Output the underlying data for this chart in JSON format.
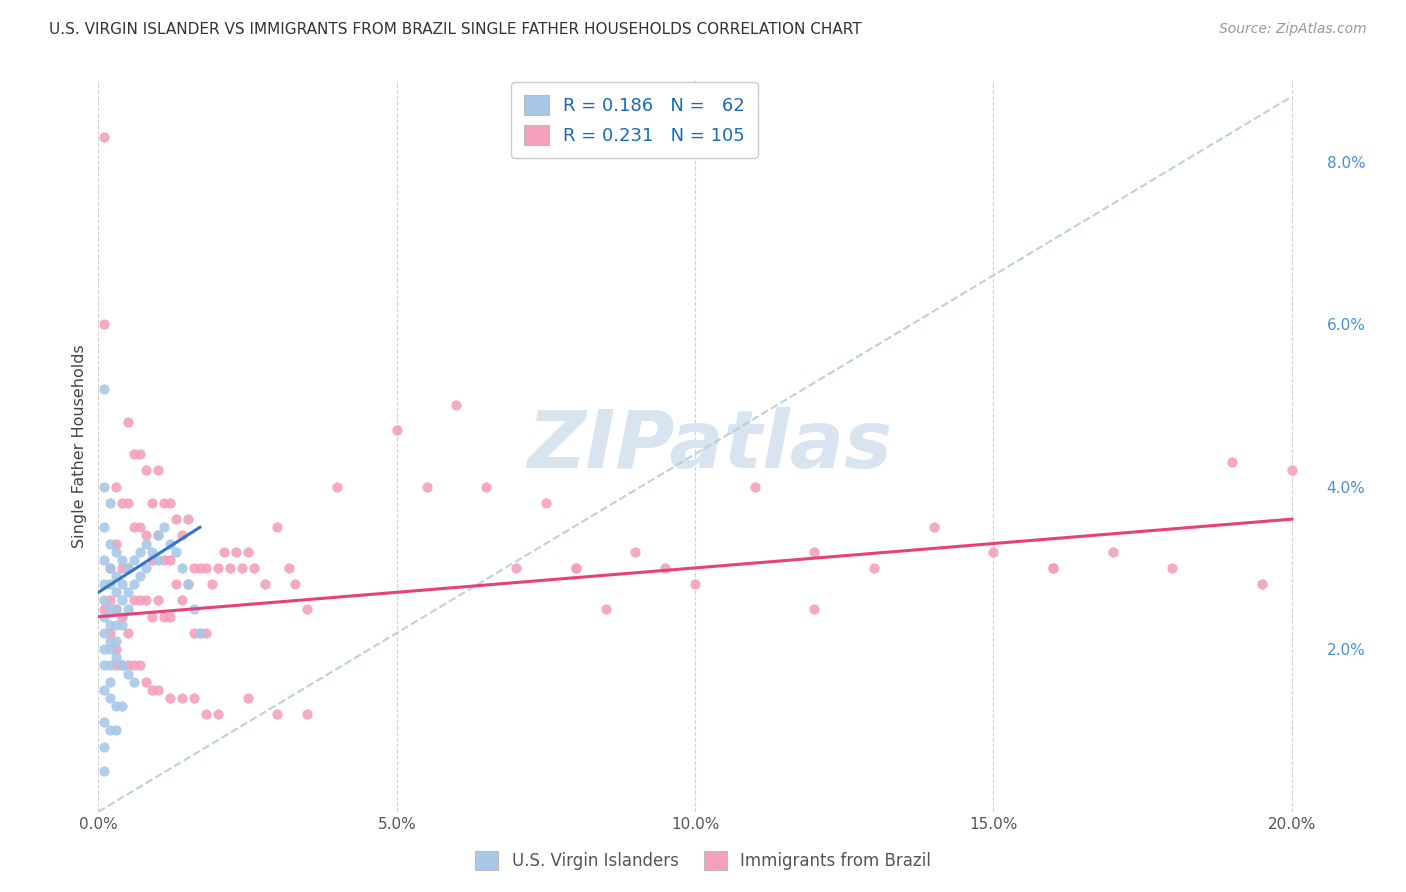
{
  "title": "U.S. VIRGIN ISLANDER VS IMMIGRANTS FROM BRAZIL SINGLE FATHER HOUSEHOLDS CORRELATION CHART",
  "source": "Source: ZipAtlas.com",
  "ylabel": "Single Father Households",
  "blue_color": "#a8c8e8",
  "pink_color": "#f4a0bc",
  "blue_line_color": "#3575c8",
  "pink_line_color": "#e8407a",
  "dashed_line_color": "#b0c8e0",
  "watermark_text": "ZIPatlas",
  "watermark_color": "#d8e4f0",
  "R_blue": 0.186,
  "N_blue": 62,
  "R_pink": 0.231,
  "N_pink": 105,
  "xlim": [
    0.0,
    0.205
  ],
  "ylim": [
    0.0,
    0.09
  ],
  "xticks": [
    0.0,
    0.05,
    0.1,
    0.15,
    0.2
  ],
  "yticks": [
    0.02,
    0.04,
    0.06,
    0.08
  ],
  "blue_x": [
    0.001,
    0.001,
    0.001,
    0.001,
    0.001,
    0.001,
    0.001,
    0.001,
    0.001,
    0.001,
    0.002,
    0.002,
    0.002,
    0.002,
    0.002,
    0.002,
    0.002,
    0.002,
    0.002,
    0.002,
    0.003,
    0.003,
    0.003,
    0.003,
    0.003,
    0.003,
    0.003,
    0.004,
    0.004,
    0.004,
    0.004,
    0.005,
    0.005,
    0.005,
    0.006,
    0.006,
    0.007,
    0.007,
    0.008,
    0.008,
    0.009,
    0.01,
    0.01,
    0.011,
    0.012,
    0.013,
    0.014,
    0.015,
    0.016,
    0.017,
    0.001,
    0.002,
    0.003,
    0.004,
    0.005,
    0.006,
    0.001,
    0.002,
    0.003,
    0.004,
    0.001,
    0.001
  ],
  "blue_y": [
    0.052,
    0.04,
    0.035,
    0.031,
    0.028,
    0.026,
    0.024,
    0.022,
    0.02,
    0.018,
    0.038,
    0.033,
    0.03,
    0.028,
    0.025,
    0.023,
    0.021,
    0.02,
    0.018,
    0.016,
    0.032,
    0.029,
    0.027,
    0.025,
    0.023,
    0.021,
    0.019,
    0.031,
    0.028,
    0.026,
    0.023,
    0.03,
    0.027,
    0.025,
    0.031,
    0.028,
    0.032,
    0.029,
    0.033,
    0.03,
    0.032,
    0.034,
    0.031,
    0.035,
    0.033,
    0.032,
    0.03,
    0.028,
    0.025,
    0.022,
    0.015,
    0.014,
    0.013,
    0.018,
    0.017,
    0.016,
    0.011,
    0.01,
    0.01,
    0.013,
    0.008,
    0.005
  ],
  "pink_x": [
    0.001,
    0.001,
    0.001,
    0.002,
    0.002,
    0.002,
    0.003,
    0.003,
    0.003,
    0.003,
    0.004,
    0.004,
    0.004,
    0.005,
    0.005,
    0.005,
    0.005,
    0.006,
    0.006,
    0.006,
    0.007,
    0.007,
    0.007,
    0.008,
    0.008,
    0.008,
    0.009,
    0.009,
    0.009,
    0.01,
    0.01,
    0.01,
    0.011,
    0.011,
    0.011,
    0.012,
    0.012,
    0.012,
    0.013,
    0.013,
    0.014,
    0.014,
    0.015,
    0.015,
    0.016,
    0.016,
    0.017,
    0.017,
    0.018,
    0.018,
    0.019,
    0.02,
    0.021,
    0.022,
    0.023,
    0.024,
    0.025,
    0.026,
    0.028,
    0.03,
    0.032,
    0.033,
    0.035,
    0.04,
    0.05,
    0.055,
    0.06,
    0.065,
    0.07,
    0.075,
    0.08,
    0.085,
    0.09,
    0.095,
    0.1,
    0.11,
    0.12,
    0.13,
    0.14,
    0.15,
    0.16,
    0.17,
    0.18,
    0.003,
    0.004,
    0.005,
    0.006,
    0.007,
    0.008,
    0.009,
    0.01,
    0.012,
    0.014,
    0.016,
    0.018,
    0.02,
    0.025,
    0.03,
    0.035,
    0.08,
    0.12,
    0.16,
    0.19,
    0.2,
    0.195
  ],
  "pink_y": [
    0.083,
    0.06,
    0.025,
    0.03,
    0.026,
    0.022,
    0.04,
    0.033,
    0.025,
    0.02,
    0.038,
    0.03,
    0.024,
    0.048,
    0.038,
    0.03,
    0.022,
    0.044,
    0.035,
    0.026,
    0.044,
    0.035,
    0.026,
    0.042,
    0.034,
    0.026,
    0.038,
    0.031,
    0.024,
    0.042,
    0.034,
    0.026,
    0.038,
    0.031,
    0.024,
    0.038,
    0.031,
    0.024,
    0.036,
    0.028,
    0.034,
    0.026,
    0.036,
    0.028,
    0.03,
    0.022,
    0.03,
    0.022,
    0.03,
    0.022,
    0.028,
    0.03,
    0.032,
    0.03,
    0.032,
    0.03,
    0.032,
    0.03,
    0.028,
    0.035,
    0.03,
    0.028,
    0.025,
    0.04,
    0.047,
    0.04,
    0.05,
    0.04,
    0.03,
    0.038,
    0.03,
    0.025,
    0.032,
    0.03,
    0.028,
    0.04,
    0.032,
    0.03,
    0.035,
    0.032,
    0.03,
    0.032,
    0.03,
    0.018,
    0.018,
    0.018,
    0.018,
    0.018,
    0.016,
    0.015,
    0.015,
    0.014,
    0.014,
    0.014,
    0.012,
    0.012,
    0.014,
    0.012,
    0.012,
    0.03,
    0.025,
    0.03,
    0.043,
    0.042,
    0.028
  ],
  "blue_line_x": [
    0.0,
    0.017
  ],
  "blue_line_y": [
    0.027,
    0.035
  ],
  "pink_line_x": [
    0.0,
    0.2
  ],
  "pink_line_y": [
    0.024,
    0.036
  ],
  "diag_line_x": [
    0.0,
    0.2
  ],
  "diag_line_y": [
    0.0,
    0.088
  ]
}
